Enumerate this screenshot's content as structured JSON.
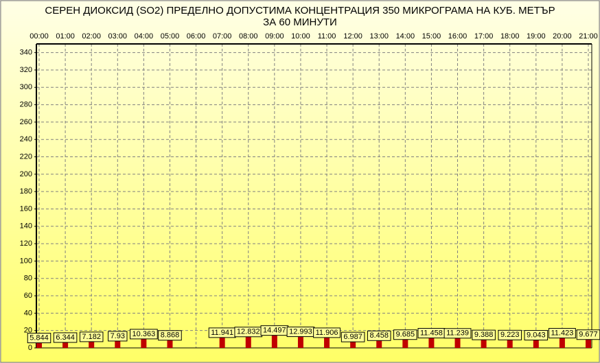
{
  "chart_data": {
    "type": "bar",
    "title": "СЕРЕН ДИОКСИД  (SO2)  ПРЕДЕЛНО ДОПУСТИМА КОНЦЕНТРАЦИЯ 350 МИКРОГРАМА  НА КУБ. МЕТЪР",
    "subtitle": "ЗА 60 МИНУТИ",
    "categories": [
      "00:00",
      "01:00",
      "02:00",
      "03:00",
      "04:00",
      "05:00",
      "06:00",
      "07:00",
      "08:00",
      "09:00",
      "10:00",
      "11:00",
      "12:00",
      "13:00",
      "14:00",
      "15:00",
      "16:00",
      "17:00",
      "18:00",
      "19:00",
      "20:00",
      "21:00"
    ],
    "values": [
      5.844,
      6.344,
      7.182,
      7.93,
      10.363,
      8.868,
      null,
      11.941,
      12.832,
      14.497,
      12.993,
      11.906,
      6.987,
      8.458,
      9.685,
      11.458,
      11.239,
      9.388,
      9.223,
      9.043,
      11.423,
      9.677
    ],
    "color": "#c00000",
    "ylim": [
      0,
      350
    ],
    "yticks": [
      0,
      20,
      40,
      60,
      80,
      100,
      120,
      140,
      160,
      180,
      200,
      220,
      240,
      260,
      280,
      300,
      320,
      340
    ],
    "grid": true
  }
}
